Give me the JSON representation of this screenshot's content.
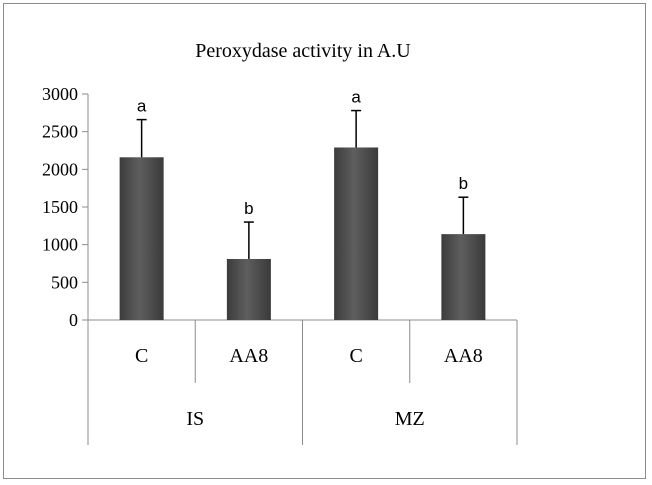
{
  "chart_data": {
    "type": "bar",
    "title": "Peroxydase activity in A.U",
    "xlabel": "",
    "ylabel": "",
    "ylim": [
      0,
      3000
    ],
    "y_ticks": [
      0,
      500,
      1000,
      1500,
      2000,
      2500,
      3000
    ],
    "grid": false,
    "legend": "none",
    "groups": [
      {
        "label": "IS",
        "categories": [
          "C",
          "AA8"
        ]
      },
      {
        "label": "MZ",
        "categories": [
          "C",
          "AA8"
        ]
      }
    ],
    "categories": [
      "C",
      "AA8",
      "C",
      "AA8"
    ],
    "values": [
      2160,
      810,
      2290,
      1140
    ],
    "error_plus": [
      500,
      490,
      490,
      490
    ],
    "significance_letters": [
      "a",
      "b",
      "a",
      "b"
    ],
    "bar_color": "#505050"
  }
}
